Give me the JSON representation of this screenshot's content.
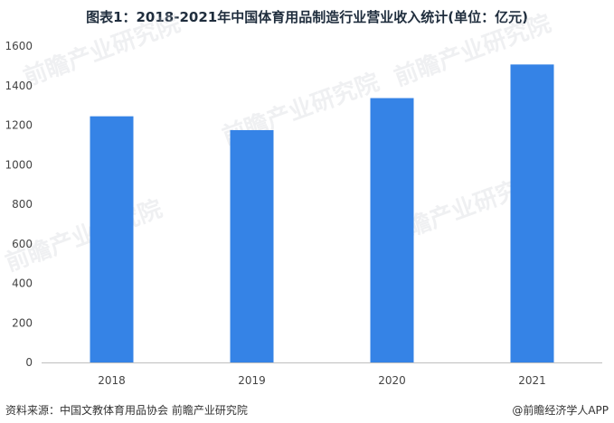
{
  "title": "图表1：2018-2021年中国体育用品制造行业营业收入统计(单位：亿元)",
  "footer": {
    "source": "资料来源：中国文教体育用品协会 前瞻产业研究院",
    "brand": "@前瞻经济学人APP"
  },
  "watermark": "前瞻产业研究院",
  "colors": {
    "bar": "#3583e6",
    "axis": "#bfbfbf"
  },
  "chart_data": {
    "type": "bar",
    "title": "图表1：2018-2021年中国体育用品制造行业营业收入统计(单位：亿元)",
    "categories": [
      "2018",
      "2019",
      "2020",
      "2021"
    ],
    "values": [
      1245,
      1175,
      1337,
      1507
    ],
    "ylim": [
      0,
      1600
    ],
    "yticks": [
      0,
      200,
      400,
      600,
      800,
      1000,
      1200,
      1400,
      1600
    ],
    "xlabel": "",
    "ylabel": "",
    "grid": false,
    "legend": "none"
  }
}
